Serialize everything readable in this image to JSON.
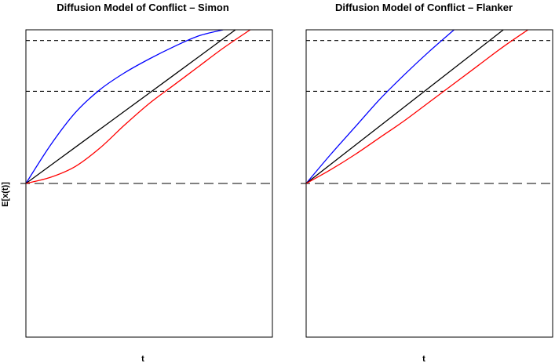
{
  "ylabel": "E[x(t)]",
  "chart_data": [
    {
      "type": "line",
      "title": "Diffusion Model of Conflict – Simon",
      "xlabel": "t",
      "ylabel": "E[x(t)]",
      "xlim": [
        0,
        1
      ],
      "ylim": [
        -1,
        1
      ],
      "grid": false,
      "hlines": [
        {
          "y": 0.0,
          "style": "long-dash"
        },
        {
          "y": 0.6,
          "style": "short-dash"
        },
        {
          "y": 0.93,
          "style": "short-dash"
        }
      ],
      "series": [
        {
          "color": "#0000ff",
          "x": [
            0,
            0.1,
            0.2,
            0.3,
            0.4,
            0.5,
            0.6,
            0.7,
            0.8
          ],
          "y": [
            0,
            0.25,
            0.46,
            0.61,
            0.72,
            0.81,
            0.89,
            0.96,
            1.0
          ]
        },
        {
          "color": "#000000",
          "x": [
            0,
            0.2,
            0.4,
            0.6,
            0.85
          ],
          "y": [
            0,
            0.235,
            0.47,
            0.705,
            1.0
          ]
        },
        {
          "color": "#ff0000",
          "x": [
            0,
            0.1,
            0.2,
            0.3,
            0.4,
            0.5,
            0.6,
            0.7,
            0.8,
            0.91
          ],
          "y": [
            0,
            0.04,
            0.11,
            0.23,
            0.38,
            0.52,
            0.64,
            0.76,
            0.88,
            1.0
          ]
        }
      ]
    },
    {
      "type": "line",
      "title": "Diffusion Model of Conflict – Flanker",
      "xlabel": "t",
      "xlim": [
        0,
        1
      ],
      "ylim": [
        -1,
        1
      ],
      "grid": false,
      "hlines": [
        {
          "y": 0.0,
          "style": "long-dash"
        },
        {
          "y": 0.6,
          "style": "short-dash"
        },
        {
          "y": 0.93,
          "style": "short-dash"
        }
      ],
      "series": [
        {
          "color": "#0000ff",
          "x": [
            0,
            0.1,
            0.2,
            0.3,
            0.4,
            0.5,
            0.6
          ],
          "y": [
            0,
            0.19,
            0.37,
            0.55,
            0.71,
            0.86,
            1.0
          ]
        },
        {
          "color": "#000000",
          "x": [
            0,
            0.2,
            0.4,
            0.6,
            0.8
          ],
          "y": [
            0,
            0.25,
            0.5,
            0.75,
            1.0
          ]
        },
        {
          "color": "#ff0000",
          "x": [
            0,
            0.1,
            0.2,
            0.3,
            0.4,
            0.5,
            0.6,
            0.7,
            0.8,
            0.9
          ],
          "y": [
            0,
            0.09,
            0.19,
            0.3,
            0.41,
            0.53,
            0.65,
            0.77,
            0.89,
            1.0
          ]
        }
      ]
    }
  ]
}
